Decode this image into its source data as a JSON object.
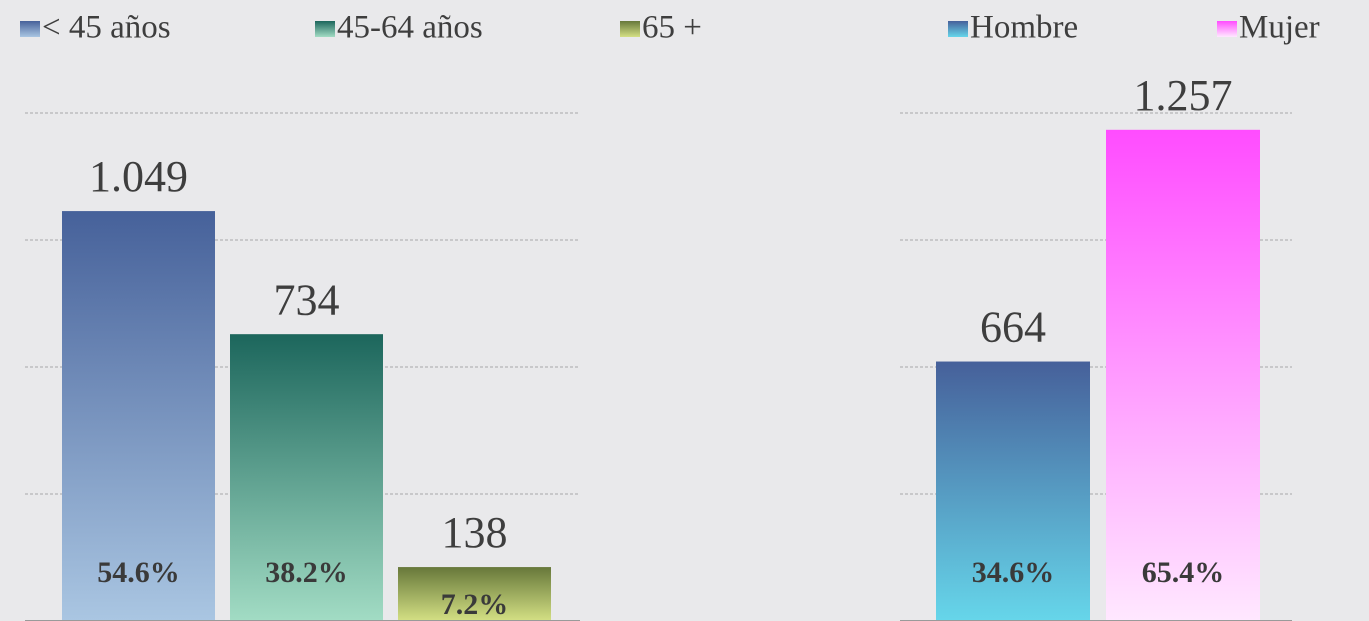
{
  "chart_data": [
    {
      "type": "bar",
      "categories": [
        "< 45  años",
        "45-64 años",
        "65 +"
      ],
      "values": [
        1049,
        734,
        138
      ],
      "value_labels": [
        "1.049",
        "734",
        "138"
      ],
      "percent_labels": [
        "54.6%",
        "38.2%",
        "7.2%"
      ],
      "colors": [
        [
          "#46619a",
          "#aac6e2"
        ],
        [
          "#1c665c",
          "#a2dcc4"
        ],
        [
          "#67783a",
          "#d4e084"
        ]
      ],
      "ylim": [
        0,
        1300
      ],
      "yticks": [
        325,
        650,
        975,
        1300
      ],
      "grid": true
    },
    {
      "type": "bar",
      "categories": [
        "Hombre",
        "Mujer"
      ],
      "values": [
        664,
        1257
      ],
      "value_labels": [
        "664",
        "1.257"
      ],
      "percent_labels": [
        "34.6%",
        "65.4%"
      ],
      "colors": [
        [
          "#46609a",
          "#66d6ea"
        ],
        [
          "#ff4cff",
          "#ffe8ff"
        ]
      ],
      "ylim": [
        0,
        1300
      ],
      "yticks": [
        325,
        650,
        975,
        1300
      ],
      "grid": true
    }
  ]
}
